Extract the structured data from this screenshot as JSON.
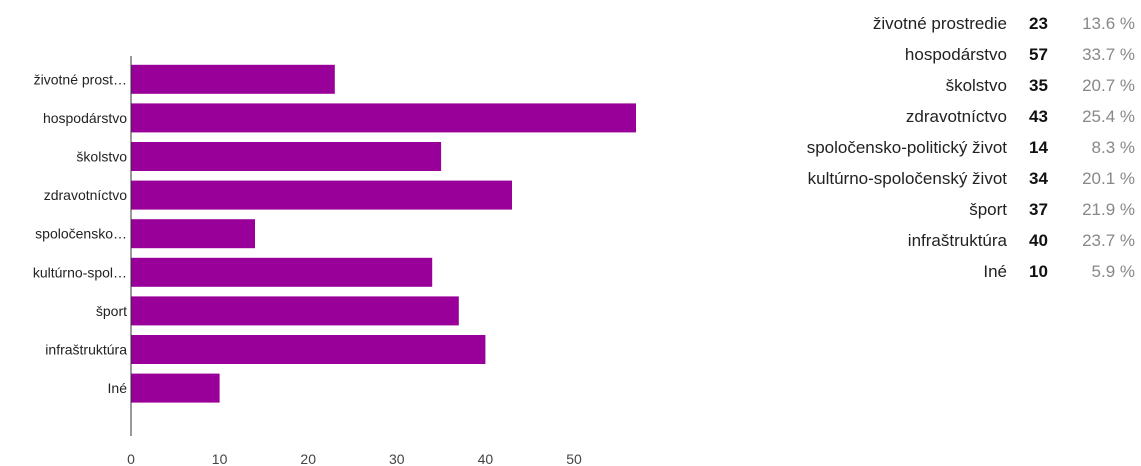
{
  "chart_data": {
    "type": "bar",
    "orientation": "horizontal",
    "categories": [
      "životné prostredie",
      "hospodárstvo",
      "školstvo",
      "zdravotníctvo",
      "spoločensko-politický život",
      "kultúrno-spoločenský život",
      "šport",
      "infraštruktúra",
      "Iné"
    ],
    "category_labels": [
      "životné prost…",
      "hospodárstvo",
      "školstvo",
      "zdravotníctvo",
      "spoločensko…",
      "kultúrno-spol…",
      "šport",
      "infraštruktúra",
      "Iné"
    ],
    "values": [
      23,
      57,
      35,
      43,
      14,
      34,
      37,
      40,
      10
    ],
    "xlim": [
      0,
      57
    ],
    "xticks": [
      0,
      10,
      20,
      30,
      40,
      50
    ],
    "title": "",
    "xlabel": "",
    "ylabel": "",
    "bar_color": "#990099",
    "grid": false
  },
  "summary": [
    {
      "label": "životné prostredie",
      "count": "23",
      "percent": "13.6 %"
    },
    {
      "label": "hospodárstvo",
      "count": "57",
      "percent": "33.7 %"
    },
    {
      "label": "školstvo",
      "count": "35",
      "percent": "20.7 %"
    },
    {
      "label": "zdravotníctvo",
      "count": "43",
      "percent": "25.4 %"
    },
    {
      "label": "spoločensko-politický život",
      "count": "14",
      "percent": "8.3 %"
    },
    {
      "label": "kultúrno-spoločenský život",
      "count": "34",
      "percent": "20.1 %"
    },
    {
      "label": "šport",
      "count": "37",
      "percent": "21.9 %"
    },
    {
      "label": "infraštruktúra",
      "count": "40",
      "percent": "23.7 %"
    },
    {
      "label": "Iné",
      "count": "10",
      "percent": "5.9 %"
    }
  ]
}
